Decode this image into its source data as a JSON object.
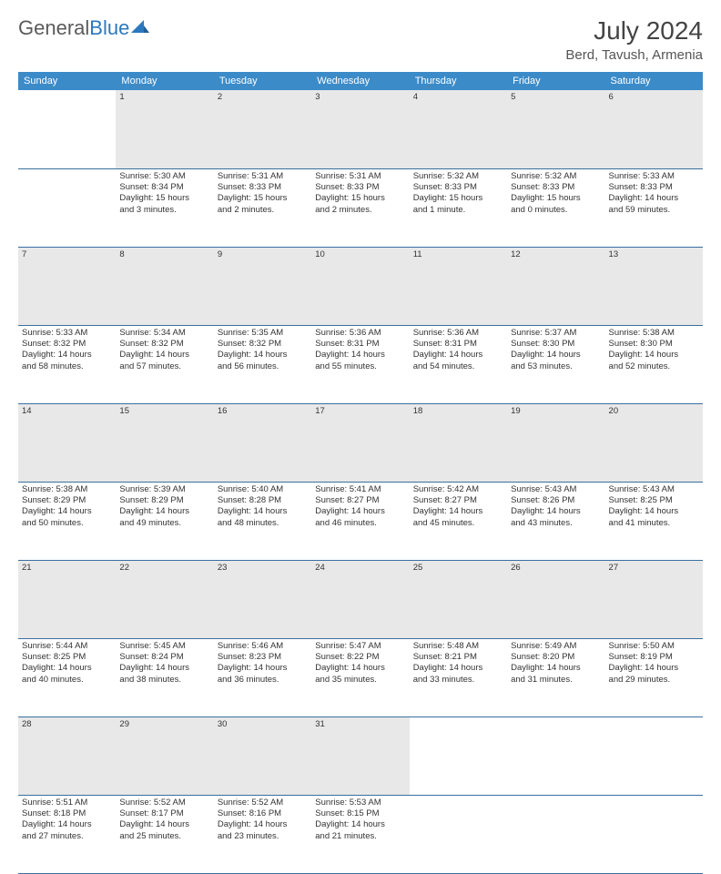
{
  "brand": {
    "part1": "General",
    "part2": "Blue"
  },
  "title": "July 2024",
  "location": "Berd, Tavush, Armenia",
  "colors": {
    "header_bg": "#3b8bc9",
    "header_text": "#ffffff",
    "daynum_bg": "#e8e8e8",
    "row_border": "#3b6fa0",
    "body_text": "#333333",
    "logo_gray": "#5a5a5a",
    "logo_blue": "#2c78bd"
  },
  "typography": {
    "title_fontsize": 28,
    "location_fontsize": 15,
    "weekday_fontsize": 11,
    "daynum_fontsize": 11,
    "cell_fontsize": 9.5
  },
  "weekdays": [
    "Sunday",
    "Monday",
    "Tuesday",
    "Wednesday",
    "Thursday",
    "Friday",
    "Saturday"
  ],
  "weeks": [
    [
      {
        "n": "",
        "lines": []
      },
      {
        "n": "1",
        "lines": [
          "Sunrise: 5:30 AM",
          "Sunset: 8:34 PM",
          "Daylight: 15 hours",
          "and 3 minutes."
        ]
      },
      {
        "n": "2",
        "lines": [
          "Sunrise: 5:31 AM",
          "Sunset: 8:33 PM",
          "Daylight: 15 hours",
          "and 2 minutes."
        ]
      },
      {
        "n": "3",
        "lines": [
          "Sunrise: 5:31 AM",
          "Sunset: 8:33 PM",
          "Daylight: 15 hours",
          "and 2 minutes."
        ]
      },
      {
        "n": "4",
        "lines": [
          "Sunrise: 5:32 AM",
          "Sunset: 8:33 PM",
          "Daylight: 15 hours",
          "and 1 minute."
        ]
      },
      {
        "n": "5",
        "lines": [
          "Sunrise: 5:32 AM",
          "Sunset: 8:33 PM",
          "Daylight: 15 hours",
          "and 0 minutes."
        ]
      },
      {
        "n": "6",
        "lines": [
          "Sunrise: 5:33 AM",
          "Sunset: 8:33 PM",
          "Daylight: 14 hours",
          "and 59 minutes."
        ]
      }
    ],
    [
      {
        "n": "7",
        "lines": [
          "Sunrise: 5:33 AM",
          "Sunset: 8:32 PM",
          "Daylight: 14 hours",
          "and 58 minutes."
        ]
      },
      {
        "n": "8",
        "lines": [
          "Sunrise: 5:34 AM",
          "Sunset: 8:32 PM",
          "Daylight: 14 hours",
          "and 57 minutes."
        ]
      },
      {
        "n": "9",
        "lines": [
          "Sunrise: 5:35 AM",
          "Sunset: 8:32 PM",
          "Daylight: 14 hours",
          "and 56 minutes."
        ]
      },
      {
        "n": "10",
        "lines": [
          "Sunrise: 5:36 AM",
          "Sunset: 8:31 PM",
          "Daylight: 14 hours",
          "and 55 minutes."
        ]
      },
      {
        "n": "11",
        "lines": [
          "Sunrise: 5:36 AM",
          "Sunset: 8:31 PM",
          "Daylight: 14 hours",
          "and 54 minutes."
        ]
      },
      {
        "n": "12",
        "lines": [
          "Sunrise: 5:37 AM",
          "Sunset: 8:30 PM",
          "Daylight: 14 hours",
          "and 53 minutes."
        ]
      },
      {
        "n": "13",
        "lines": [
          "Sunrise: 5:38 AM",
          "Sunset: 8:30 PM",
          "Daylight: 14 hours",
          "and 52 minutes."
        ]
      }
    ],
    [
      {
        "n": "14",
        "lines": [
          "Sunrise: 5:38 AM",
          "Sunset: 8:29 PM",
          "Daylight: 14 hours",
          "and 50 minutes."
        ]
      },
      {
        "n": "15",
        "lines": [
          "Sunrise: 5:39 AM",
          "Sunset: 8:29 PM",
          "Daylight: 14 hours",
          "and 49 minutes."
        ]
      },
      {
        "n": "16",
        "lines": [
          "Sunrise: 5:40 AM",
          "Sunset: 8:28 PM",
          "Daylight: 14 hours",
          "and 48 minutes."
        ]
      },
      {
        "n": "17",
        "lines": [
          "Sunrise: 5:41 AM",
          "Sunset: 8:27 PM",
          "Daylight: 14 hours",
          "and 46 minutes."
        ]
      },
      {
        "n": "18",
        "lines": [
          "Sunrise: 5:42 AM",
          "Sunset: 8:27 PM",
          "Daylight: 14 hours",
          "and 45 minutes."
        ]
      },
      {
        "n": "19",
        "lines": [
          "Sunrise: 5:43 AM",
          "Sunset: 8:26 PM",
          "Daylight: 14 hours",
          "and 43 minutes."
        ]
      },
      {
        "n": "20",
        "lines": [
          "Sunrise: 5:43 AM",
          "Sunset: 8:25 PM",
          "Daylight: 14 hours",
          "and 41 minutes."
        ]
      }
    ],
    [
      {
        "n": "21",
        "lines": [
          "Sunrise: 5:44 AM",
          "Sunset: 8:25 PM",
          "Daylight: 14 hours",
          "and 40 minutes."
        ]
      },
      {
        "n": "22",
        "lines": [
          "Sunrise: 5:45 AM",
          "Sunset: 8:24 PM",
          "Daylight: 14 hours",
          "and 38 minutes."
        ]
      },
      {
        "n": "23",
        "lines": [
          "Sunrise: 5:46 AM",
          "Sunset: 8:23 PM",
          "Daylight: 14 hours",
          "and 36 minutes."
        ]
      },
      {
        "n": "24",
        "lines": [
          "Sunrise: 5:47 AM",
          "Sunset: 8:22 PM",
          "Daylight: 14 hours",
          "and 35 minutes."
        ]
      },
      {
        "n": "25",
        "lines": [
          "Sunrise: 5:48 AM",
          "Sunset: 8:21 PM",
          "Daylight: 14 hours",
          "and 33 minutes."
        ]
      },
      {
        "n": "26",
        "lines": [
          "Sunrise: 5:49 AM",
          "Sunset: 8:20 PM",
          "Daylight: 14 hours",
          "and 31 minutes."
        ]
      },
      {
        "n": "27",
        "lines": [
          "Sunrise: 5:50 AM",
          "Sunset: 8:19 PM",
          "Daylight: 14 hours",
          "and 29 minutes."
        ]
      }
    ],
    [
      {
        "n": "28",
        "lines": [
          "Sunrise: 5:51 AM",
          "Sunset: 8:18 PM",
          "Daylight: 14 hours",
          "and 27 minutes."
        ]
      },
      {
        "n": "29",
        "lines": [
          "Sunrise: 5:52 AM",
          "Sunset: 8:17 PM",
          "Daylight: 14 hours",
          "and 25 minutes."
        ]
      },
      {
        "n": "30",
        "lines": [
          "Sunrise: 5:52 AM",
          "Sunset: 8:16 PM",
          "Daylight: 14 hours",
          "and 23 minutes."
        ]
      },
      {
        "n": "31",
        "lines": [
          "Sunrise: 5:53 AM",
          "Sunset: 8:15 PM",
          "Daylight: 14 hours",
          "and 21 minutes."
        ]
      },
      {
        "n": "",
        "lines": []
      },
      {
        "n": "",
        "lines": []
      },
      {
        "n": "",
        "lines": []
      }
    ]
  ]
}
